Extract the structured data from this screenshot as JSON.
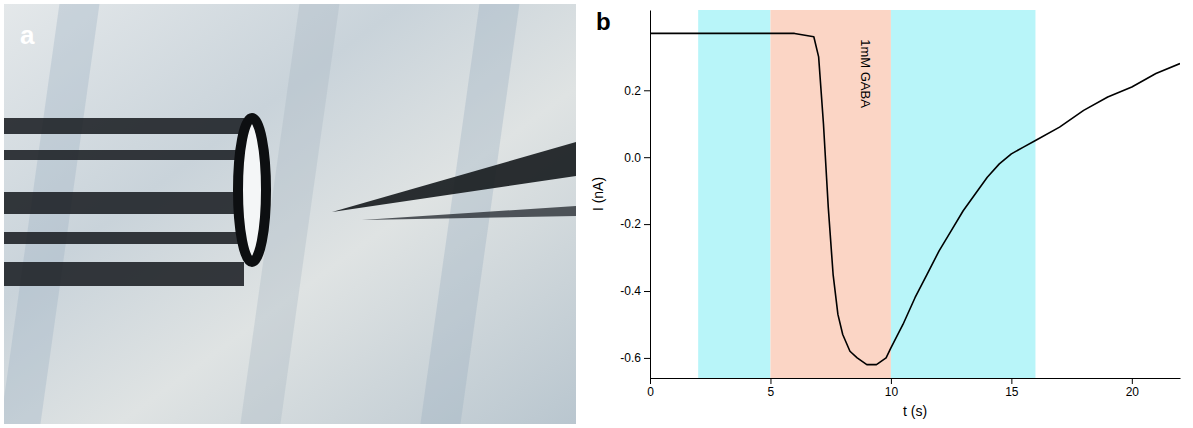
{
  "photo": {
    "label": "a"
  },
  "chart_data": {
    "type": "line",
    "label": "b",
    "x_label": "t (s)",
    "y_label": "I (nA)",
    "x": [
      0,
      1,
      2,
      3,
      4,
      5,
      6,
      6.8,
      7,
      7.2,
      7.4,
      7.6,
      7.8,
      8,
      8.3,
      8.6,
      9,
      9.4,
      9.8,
      10,
      10.5,
      11,
      11.5,
      12,
      12.5,
      13,
      13.5,
      14,
      14.5,
      15,
      15.5,
      16,
      17,
      18,
      19,
      20,
      21,
      22
    ],
    "values": [
      0.37,
      0.37,
      0.37,
      0.37,
      0.37,
      0.37,
      0.37,
      0.36,
      0.3,
      0.1,
      -0.15,
      -0.35,
      -0.47,
      -0.53,
      -0.58,
      -0.6,
      -0.62,
      -0.62,
      -0.6,
      -0.57,
      -0.5,
      -0.42,
      -0.35,
      -0.28,
      -0.22,
      -0.16,
      -0.11,
      -0.06,
      -0.02,
      0.01,
      0.03,
      0.05,
      0.09,
      0.14,
      0.18,
      0.21,
      0.25,
      0.28
    ],
    "color": "#000000",
    "xlim": [
      0,
      22
    ],
    "ylim": [
      -0.66,
      0.44
    ],
    "xticks": [
      0,
      5,
      10,
      15,
      20
    ],
    "yticks": [
      -0.6,
      -0.4,
      -0.2,
      {
        "value": 0,
        "label": "0.0"
      },
      0.2
    ],
    "regions": [
      {
        "start": 2,
        "end": 5,
        "color": "#b8f5f9"
      },
      {
        "start": 5,
        "end": 10,
        "color": "#fbd5c5"
      },
      {
        "start": 10,
        "end": 16,
        "color": "#b8f5f9"
      }
    ],
    "annotations": [
      {
        "text": "1mM GABA",
        "x": 8.9,
        "y": 0.25
      }
    ],
    "grid": false
  }
}
